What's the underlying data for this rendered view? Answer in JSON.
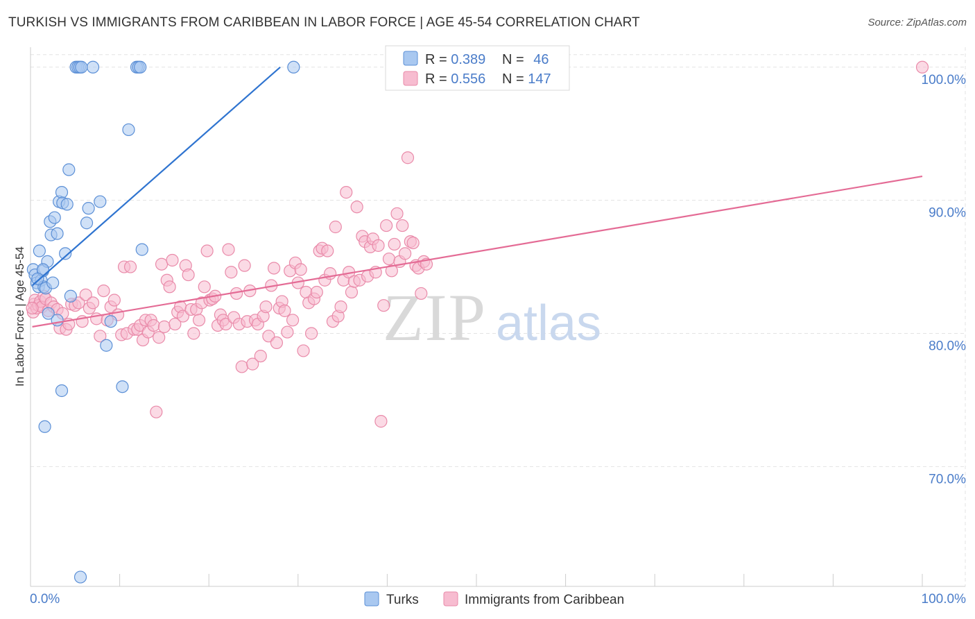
{
  "header": {
    "title": "TURKISH VS IMMIGRANTS FROM CARIBBEAN IN LABOR FORCE | AGE 45-54 CORRELATION CHART",
    "source": "Source: ZipAtlas.com"
  },
  "watermark": {
    "zip": "ZIP",
    "atlas": "atlas"
  },
  "colors": {
    "turks_fill": "#a9c8f0",
    "turks_stroke": "#5b8fd6",
    "turks_line": "#2f74d0",
    "carib_fill": "#f7bcd0",
    "carib_stroke": "#e98aa9",
    "carib_line": "#e46b95",
    "grid": "#e3e3e3",
    "tick_text": "#4a7cc9"
  },
  "legend": {
    "rows": [
      {
        "r_label": "R = ",
        "r_value": "0.389",
        "n_label": "N = ",
        "n_value": "46"
      },
      {
        "r_label": "R = ",
        "r_value": "0.556",
        "n_label": "N = ",
        "n_value": "147"
      }
    ]
  },
  "chart_data": {
    "type": "scatter",
    "title": "TURKISH VS IMMIGRANTS FROM CARIBBEAN IN LABOR FORCE | AGE 45-54 CORRELATION CHART",
    "xlabel": "",
    "ylabel": "In Labor Force | Age 45-54",
    "xlim": [
      0,
      100
    ],
    "ylim": [
      61,
      101.5
    ],
    "x_tick_labels": [
      "0.0%",
      "100.0%"
    ],
    "y_ticks": [
      70,
      80,
      90,
      100
    ],
    "y_tick_labels": [
      "70.0%",
      "80.0%",
      "90.0%",
      "100.0%"
    ],
    "grid": true,
    "legend_position": "top-center",
    "series": [
      {
        "name": "Turks",
        "r": 0.389,
        "n": 46,
        "trend": {
          "x0": 0.2,
          "y0": 83.6,
          "x1": 28,
          "y1": 100
        },
        "points": [
          [
            0.3,
            84.8
          ],
          [
            0.5,
            84.4
          ],
          [
            0.7,
            83.8
          ],
          [
            0.9,
            83.5
          ],
          [
            1.0,
            86.2
          ],
          [
            1.2,
            84.0
          ],
          [
            1.4,
            84.7
          ],
          [
            1.5,
            83.5
          ],
          [
            1.7,
            83.4
          ],
          [
            1.9,
            85.4
          ],
          [
            2.0,
            81.5
          ],
          [
            2.2,
            88.4
          ],
          [
            2.3,
            87.4
          ],
          [
            2.5,
            83.8
          ],
          [
            2.7,
            88.7
          ],
          [
            3.0,
            87.5
          ],
          [
            3.2,
            89.9
          ],
          [
            3.5,
            90.6
          ],
          [
            3.6,
            89.8
          ],
          [
            3.9,
            86.0
          ],
          [
            4.1,
            89.7
          ],
          [
            4.3,
            92.3
          ],
          [
            4.5,
            82.8
          ],
          [
            5.1,
            100.0
          ],
          [
            5.3,
            100.0
          ],
          [
            5.5,
            100.0
          ],
          [
            5.7,
            100.0
          ],
          [
            6.3,
            88.3
          ],
          [
            6.5,
            89.4
          ],
          [
            7.0,
            100.0
          ],
          [
            7.8,
            89.9
          ],
          [
            8.5,
            79.1
          ],
          [
            9.0,
            80.9
          ],
          [
            10.3,
            76.0
          ],
          [
            11.0,
            95.3
          ],
          [
            11.9,
            100.0
          ],
          [
            12.1,
            100.0
          ],
          [
            12.3,
            100.0
          ],
          [
            12.5,
            86.3
          ],
          [
            29.5,
            100.0
          ],
          [
            1.6,
            73.0
          ],
          [
            3.5,
            75.7
          ],
          [
            3.0,
            81.0
          ],
          [
            1.4,
            84.8
          ],
          [
            0.8,
            84.1
          ],
          [
            5.6,
            61.7
          ]
        ]
      },
      {
        "name": "Immigrants from Caribbean",
        "r": 0.556,
        "n": 147,
        "trend": {
          "x0": 0.2,
          "y0": 80.5,
          "x1": 100,
          "y1": 91.8
        },
        "points": [
          [
            0.3,
            81.6
          ],
          [
            0.4,
            82.2
          ],
          [
            0.5,
            82.5
          ],
          [
            0.7,
            81.9
          ],
          [
            0.9,
            82.1
          ],
          [
            1.1,
            82.4
          ],
          [
            1.3,
            82.0
          ],
          [
            1.5,
            82.8
          ],
          [
            1.7,
            82.6
          ],
          [
            2.0,
            81.7
          ],
          [
            2.3,
            82.3
          ],
          [
            2.6,
            82.0
          ],
          [
            3.0,
            81.8
          ],
          [
            3.3,
            80.4
          ],
          [
            3.6,
            81.5
          ],
          [
            4.0,
            80.3
          ],
          [
            4.3,
            80.7
          ],
          [
            4.6,
            82.2
          ],
          [
            5.0,
            82.1
          ],
          [
            5.4,
            82.3
          ],
          [
            5.8,
            80.9
          ],
          [
            6.2,
            82.9
          ],
          [
            6.6,
            81.9
          ],
          [
            7.0,
            82.3
          ],
          [
            7.4,
            81.1
          ],
          [
            7.8,
            79.8
          ],
          [
            8.2,
            83.2
          ],
          [
            8.6,
            81.0
          ],
          [
            9.0,
            82.0
          ],
          [
            9.4,
            82.5
          ],
          [
            9.8,
            81.4
          ],
          [
            10.2,
            79.9
          ],
          [
            10.5,
            85.0
          ],
          [
            10.8,
            80.0
          ],
          [
            11.2,
            85.0
          ],
          [
            11.6,
            80.3
          ],
          [
            12.0,
            80.3
          ],
          [
            12.3,
            80.6
          ],
          [
            12.6,
            79.5
          ],
          [
            12.9,
            81.0
          ],
          [
            13.2,
            80.1
          ],
          [
            13.5,
            81.0
          ],
          [
            13.8,
            80.6
          ],
          [
            14.1,
            74.1
          ],
          [
            14.4,
            79.7
          ],
          [
            14.7,
            85.2
          ],
          [
            15.0,
            80.5
          ],
          [
            15.3,
            84.0
          ],
          [
            15.6,
            83.5
          ],
          [
            15.9,
            85.5
          ],
          [
            16.2,
            80.7
          ],
          [
            16.5,
            81.6
          ],
          [
            16.8,
            82.0
          ],
          [
            17.1,
            81.3
          ],
          [
            17.4,
            85.1
          ],
          [
            17.7,
            84.4
          ],
          [
            18.0,
            81.8
          ],
          [
            18.3,
            80.0
          ],
          [
            18.6,
            81.8
          ],
          [
            18.9,
            81.0
          ],
          [
            19.2,
            82.3
          ],
          [
            19.5,
            83.5
          ],
          [
            19.8,
            86.2
          ],
          [
            20.1,
            82.5
          ],
          [
            20.4,
            82.6
          ],
          [
            20.7,
            82.8
          ],
          [
            21.0,
            80.6
          ],
          [
            21.3,
            81.4
          ],
          [
            21.6,
            81.0
          ],
          [
            21.9,
            80.7
          ],
          [
            22.2,
            86.3
          ],
          [
            22.5,
            84.6
          ],
          [
            22.8,
            81.2
          ],
          [
            23.1,
            83.0
          ],
          [
            23.4,
            80.7
          ],
          [
            23.7,
            77.5
          ],
          [
            24.0,
            85.1
          ],
          [
            24.3,
            80.9
          ],
          [
            24.6,
            83.2
          ],
          [
            24.9,
            77.7
          ],
          [
            25.2,
            81.0
          ],
          [
            25.5,
            80.7
          ],
          [
            25.8,
            78.3
          ],
          [
            26.1,
            81.3
          ],
          [
            26.4,
            82.0
          ],
          [
            26.7,
            79.8
          ],
          [
            27.0,
            83.6
          ],
          [
            27.3,
            84.9
          ],
          [
            27.6,
            79.3
          ],
          [
            27.9,
            81.9
          ],
          [
            28.2,
            82.4
          ],
          [
            28.5,
            81.7
          ],
          [
            28.8,
            80.1
          ],
          [
            29.1,
            84.7
          ],
          [
            29.4,
            81.0
          ],
          [
            29.7,
            85.3
          ],
          [
            30.0,
            83.8
          ],
          [
            30.3,
            84.8
          ],
          [
            30.6,
            78.7
          ],
          [
            30.9,
            83.1
          ],
          [
            31.2,
            82.3
          ],
          [
            31.5,
            80.0
          ],
          [
            31.8,
            82.6
          ],
          [
            32.1,
            83.1
          ],
          [
            32.4,
            86.2
          ],
          [
            32.7,
            86.4
          ],
          [
            33.0,
            84.0
          ],
          [
            33.3,
            86.2
          ],
          [
            33.6,
            84.5
          ],
          [
            33.9,
            80.9
          ],
          [
            34.2,
            88.0
          ],
          [
            34.5,
            81.3
          ],
          [
            34.8,
            82.0
          ],
          [
            35.1,
            84.0
          ],
          [
            35.4,
            90.6
          ],
          [
            35.7,
            84.6
          ],
          [
            36.0,
            83.1
          ],
          [
            36.3,
            83.9
          ],
          [
            36.6,
            89.5
          ],
          [
            36.9,
            84.0
          ],
          [
            37.2,
            87.3
          ],
          [
            37.5,
            86.9
          ],
          [
            37.8,
            84.3
          ],
          [
            38.1,
            86.5
          ],
          [
            38.4,
            87.1
          ],
          [
            38.7,
            84.6
          ],
          [
            39.0,
            86.6
          ],
          [
            39.3,
            73.4
          ],
          [
            39.6,
            82.1
          ],
          [
            39.9,
            88.1
          ],
          [
            40.2,
            85.6
          ],
          [
            40.5,
            84.7
          ],
          [
            40.8,
            86.7
          ],
          [
            41.1,
            89.0
          ],
          [
            41.4,
            85.4
          ],
          [
            41.7,
            88.1
          ],
          [
            42.0,
            86.0
          ],
          [
            42.3,
            93.2
          ],
          [
            42.6,
            86.9
          ],
          [
            42.9,
            86.8
          ],
          [
            43.2,
            85.1
          ],
          [
            43.5,
            84.9
          ],
          [
            43.8,
            83.0
          ],
          [
            44.1,
            85.4
          ],
          [
            44.4,
            85.2
          ],
          [
            100.0,
            100.0
          ],
          [
            0.2,
            81.9
          ]
        ]
      }
    ]
  },
  "bottom_legend": {
    "items": [
      {
        "label": "Turks"
      },
      {
        "label": "Immigrants from Caribbean"
      }
    ]
  }
}
